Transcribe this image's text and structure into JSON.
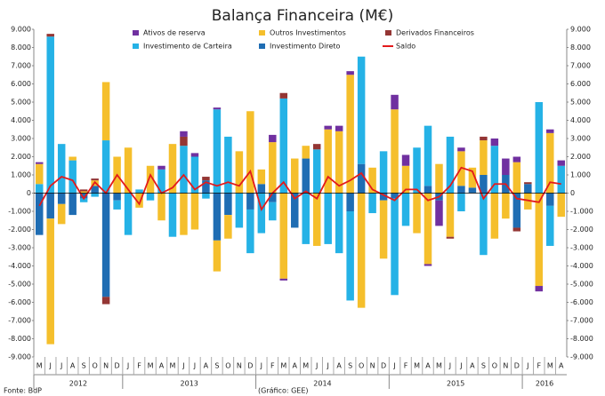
{
  "chart_data": {
    "type": "bar",
    "title": "Balança Financeira (M€)",
    "categories": [
      "M",
      "J",
      "J",
      "A",
      "S",
      "O",
      "N",
      "D",
      "J",
      "F",
      "M",
      "A",
      "M",
      "J",
      "J",
      "A",
      "S",
      "O",
      "N",
      "D",
      "J",
      "F",
      "M",
      "A",
      "M",
      "J",
      "J",
      "A",
      "S",
      "O",
      "N",
      "D",
      "J",
      "F",
      "M",
      "A",
      "M",
      "J",
      "J",
      "A",
      "S",
      "O",
      "N",
      "D",
      "J",
      "F",
      "M",
      "A"
    ],
    "year_labels": [
      "2012",
      "2013",
      "2014",
      "2015",
      "2016"
    ],
    "series": [
      {
        "name": "Investimento Direto",
        "color": "#1f6db3",
        "values": [
          -2300,
          -1400,
          -600,
          -1200,
          -300,
          400,
          -5700,
          -400,
          0,
          0,
          0,
          0,
          0,
          0,
          0,
          700,
          -2600,
          -1200,
          0,
          -900,
          500,
          -500,
          0,
          -1900,
          1900,
          0,
          0,
          0,
          -1000,
          1600,
          0,
          -400,
          -300,
          0,
          0,
          400,
          -400,
          0,
          400,
          300,
          1000,
          0,
          1000,
          -1900,
          500,
          0,
          -700,
          0
        ]
      },
      {
        "name": "Investimento de Carteira",
        "color": "#25b2e6",
        "values": [
          500,
          8600,
          2700,
          1800,
          -200,
          -200,
          2900,
          -500,
          -2300,
          200,
          -400,
          1300,
          -2400,
          2600,
          2000,
          -300,
          4600,
          3100,
          -1900,
          -2400,
          -2200,
          -1000,
          5200,
          0,
          -2800,
          2400,
          -2800,
          -3300,
          -4900,
          5900,
          -1100,
          2300,
          -5300,
          -1800,
          2500,
          3300,
          0,
          3100,
          -1000,
          0,
          -3400,
          2600,
          0,
          0,
          0,
          5000,
          -2200,
          1500
        ]
      },
      {
        "name": "Outros Investimentos",
        "color": "#f5bf2c",
        "values": [
          1100,
          -6900,
          -1100,
          200,
          100,
          300,
          3200,
          2000,
          2500,
          -800,
          1500,
          -1500,
          2700,
          -2300,
          -2000,
          0,
          -1700,
          -1300,
          2300,
          4500,
          800,
          2800,
          -4700,
          1900,
          700,
          -2900,
          3500,
          3400,
          6500,
          -6300,
          1400,
          -3200,
          4600,
          1500,
          -2200,
          -3900,
          1600,
          -2400,
          1900,
          1100,
          1900,
          -2500,
          -1400,
          1700,
          -900,
          -5100,
          3300,
          -1300
        ]
      },
      {
        "name": "Derivados Financeiros",
        "color": "#943634",
        "values": [
          0,
          150,
          0,
          0,
          100,
          100,
          -400,
          0,
          0,
          0,
          0,
          0,
          0,
          500,
          0,
          200,
          0,
          0,
          0,
          0,
          0,
          0,
          300,
          0,
          0,
          300,
          0,
          0,
          0,
          0,
          0,
          0,
          0,
          0,
          0,
          0,
          0,
          -100,
          0,
          0,
          200,
          0,
          0,
          -200,
          100,
          0,
          0,
          0
        ]
      },
      {
        "name": "Ativos de reserva",
        "color": "#7030a0",
        "values": [
          100,
          0,
          0,
          0,
          0,
          0,
          0,
          0,
          0,
          0,
          0,
          200,
          0,
          300,
          200,
          0,
          100,
          0,
          0,
          0,
          0,
          400,
          -100,
          0,
          0,
          0,
          200,
          300,
          200,
          0,
          0,
          0,
          800,
          600,
          0,
          -100,
          -1400,
          0,
          200,
          0,
          0,
          400,
          900,
          300,
          0,
          -300,
          200,
          300
        ]
      },
      {
        "name": "Saldo",
        "color": "#e31a1c",
        "type": "line",
        "values": [
          -700,
          400,
          900,
          700,
          -300,
          600,
          0,
          1000,
          200,
          -600,
          1000,
          0,
          300,
          1000,
          200,
          600,
          400,
          600,
          400,
          1200,
          -900,
          0,
          600,
          -300,
          100,
          -300,
          900,
          400,
          700,
          1100,
          200,
          -100,
          -400,
          200,
          200,
          -400,
          -200,
          400,
          1400,
          1200,
          -300,
          500,
          500,
          -300,
          -400,
          -500,
          600,
          500
        ]
      }
    ],
    "legend_order": [
      4,
      2,
      3,
      1,
      0,
      5
    ],
    "ylim": [
      -9000,
      9000
    ],
    "yticks": [
      {
        "value": -9000,
        "label": "-9.000"
      },
      {
        "value": -8000,
        "label": "-8.000"
      },
      {
        "value": -7000,
        "label": "-7.000"
      },
      {
        "value": -6000,
        "label": "-6.000"
      },
      {
        "value": -5000,
        "label": "-5.000"
      },
      {
        "value": -4000,
        "label": "-4.000"
      },
      {
        "value": -3000,
        "label": "-3.000"
      },
      {
        "value": -2000,
        "label": "-2.000"
      },
      {
        "value": -1000,
        "label": "-1.000"
      },
      0,
      {
        "value": 1000,
        "label": "1.000"
      },
      {
        "value": 2000,
        "label": "2.000"
      },
      {
        "value": 3000,
        "label": "3.000"
      },
      {
        "value": 4000,
        "label": "4.000"
      },
      {
        "value": 5000,
        "label": "5.000"
      },
      {
        "value": 6000,
        "label": "6.000"
      },
      {
        "value": 7000,
        "label": "7.000"
      },
      {
        "value": 8000,
        "label": "8.000"
      },
      {
        "value": 9000,
        "label": "9.000"
      }
    ],
    "y2lim": [
      -9000,
      9000
    ],
    "y2ticks": [
      {
        "value": -9000,
        "label": "-9.000"
      },
      {
        "value": -8000,
        "label": "-8.000"
      },
      {
        "value": -7000,
        "label": "-7.000"
      },
      {
        "value": -6000,
        "label": "-6.000"
      },
      {
        "value": -5000,
        "label": "-5.000"
      },
      {
        "value": -4000,
        "label": "-4.000"
      },
      {
        "value": -3000,
        "label": "-3.000"
      },
      {
        "value": -2000,
        "label": "-2.000"
      },
      {
        "value": -1000,
        "label": "-1.000"
      },
      0,
      {
        "value": 1000,
        "label": "1.000"
      },
      {
        "value": 2000,
        "label": "2.000"
      },
      {
        "value": 3000,
        "label": "3.000"
      },
      {
        "value": 4000,
        "label": "4.000"
      },
      {
        "value": 5000,
        "label": "5.000"
      },
      {
        "value": 6000,
        "label": "6.000"
      },
      {
        "value": 7000,
        "label": "7.000"
      },
      {
        "value": 8000,
        "label": "8.000"
      },
      {
        "value": 9000,
        "label": "9.000"
      }
    ],
    "source": "Fonte: BdP",
    "credit": "(Gráfico: GEE)"
  }
}
